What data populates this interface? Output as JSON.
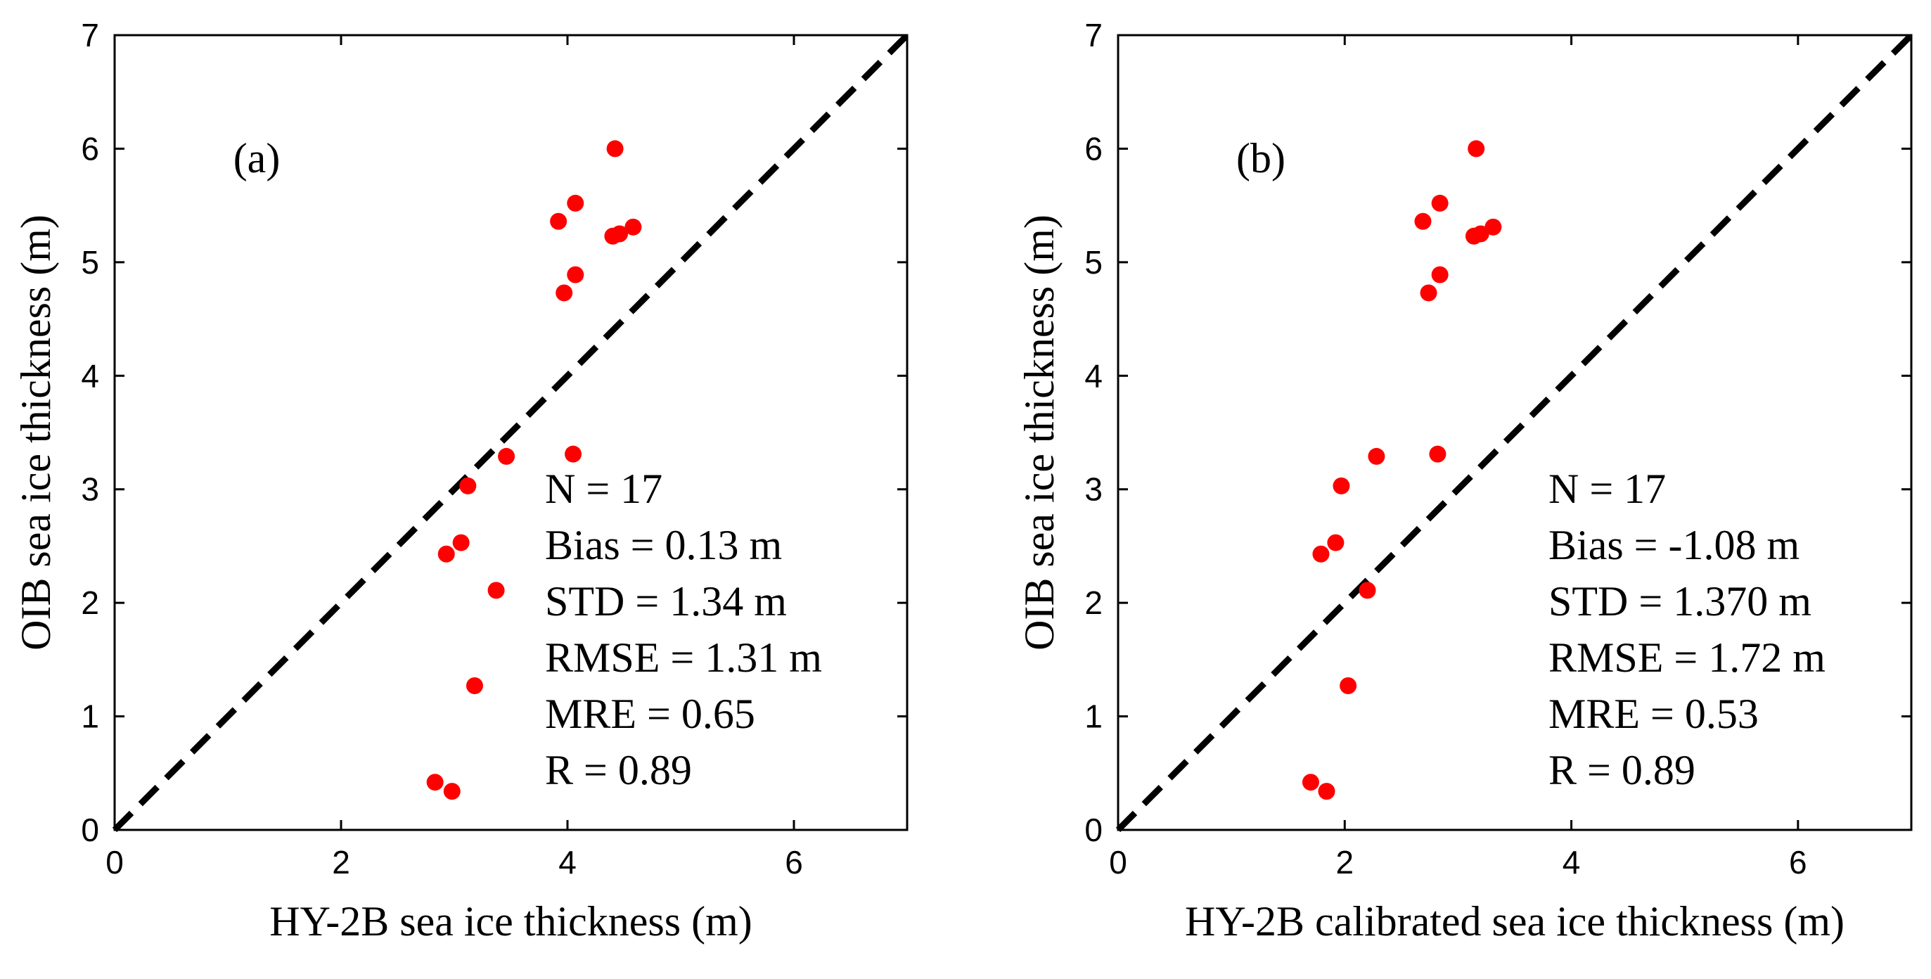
{
  "chart_data": [
    {
      "type": "scatter",
      "panel_label": "(a)",
      "xlabel": "HY-2B sea ice thickness (m)",
      "ylabel": "OIB sea ice thickness (m)",
      "xlim": [
        0,
        7
      ],
      "ylim": [
        0,
        7
      ],
      "xticks": [
        0,
        2,
        4,
        6
      ],
      "yticks": [
        0,
        1,
        2,
        3,
        4,
        5,
        6,
        7
      ],
      "reference_line": {
        "style": "dashed",
        "color": "#000000",
        "from": [
          0,
          0
        ],
        "to": [
          7,
          7
        ]
      },
      "marker_color": "#ff0000",
      "points": [
        {
          "x": 4.42,
          "y": 6.0
        },
        {
          "x": 4.07,
          "y": 5.52
        },
        {
          "x": 3.92,
          "y": 5.36
        },
        {
          "x": 4.58,
          "y": 5.31
        },
        {
          "x": 4.46,
          "y": 5.25
        },
        {
          "x": 4.4,
          "y": 5.23
        },
        {
          "x": 4.07,
          "y": 4.89
        },
        {
          "x": 3.97,
          "y": 4.73
        },
        {
          "x": 4.05,
          "y": 3.31
        },
        {
          "x": 3.46,
          "y": 3.29
        },
        {
          "x": 3.12,
          "y": 3.03
        },
        {
          "x": 3.06,
          "y": 2.53
        },
        {
          "x": 2.93,
          "y": 2.43
        },
        {
          "x": 3.37,
          "y": 2.11
        },
        {
          "x": 3.18,
          "y": 1.27
        },
        {
          "x": 2.83,
          "y": 0.42
        },
        {
          "x": 2.98,
          "y": 0.34
        }
      ],
      "stats": [
        "N = 17",
        "Bias = 0.13 m",
        "STD = 1.34 m",
        "RMSE = 1.31 m",
        "MRE = 0.65",
        "R = 0.89"
      ]
    },
    {
      "type": "scatter",
      "panel_label": "(b)",
      "xlabel": "HY-2B calibrated sea ice thickness (m)",
      "ylabel": "OIB sea ice thickness (m)",
      "xlim": [
        0,
        7
      ],
      "ylim": [
        0,
        7
      ],
      "xticks": [
        0,
        2,
        4,
        6
      ],
      "yticks": [
        0,
        1,
        2,
        3,
        4,
        5,
        6,
        7
      ],
      "reference_line": {
        "style": "dashed",
        "color": "#000000",
        "from": [
          0,
          0
        ],
        "to": [
          7,
          7
        ]
      },
      "marker_color": "#ff0000",
      "points": [
        {
          "x": 3.16,
          "y": 6.0
        },
        {
          "x": 2.84,
          "y": 5.52
        },
        {
          "x": 2.69,
          "y": 5.36
        },
        {
          "x": 3.31,
          "y": 5.31
        },
        {
          "x": 3.2,
          "y": 5.25
        },
        {
          "x": 3.14,
          "y": 5.23
        },
        {
          "x": 2.84,
          "y": 4.89
        },
        {
          "x": 2.74,
          "y": 4.73
        },
        {
          "x": 2.82,
          "y": 3.31
        },
        {
          "x": 2.28,
          "y": 3.29
        },
        {
          "x": 1.97,
          "y": 3.03
        },
        {
          "x": 1.92,
          "y": 2.53
        },
        {
          "x": 1.79,
          "y": 2.43
        },
        {
          "x": 2.2,
          "y": 2.11
        },
        {
          "x": 2.03,
          "y": 1.27
        },
        {
          "x": 1.7,
          "y": 0.42
        },
        {
          "x": 1.84,
          "y": 0.34
        }
      ],
      "stats": [
        "N = 17",
        "Bias = -1.08 m",
        "STD = 1.370 m",
        "RMSE = 1.72 m",
        "MRE = 0.53",
        "R = 0.89"
      ]
    }
  ]
}
